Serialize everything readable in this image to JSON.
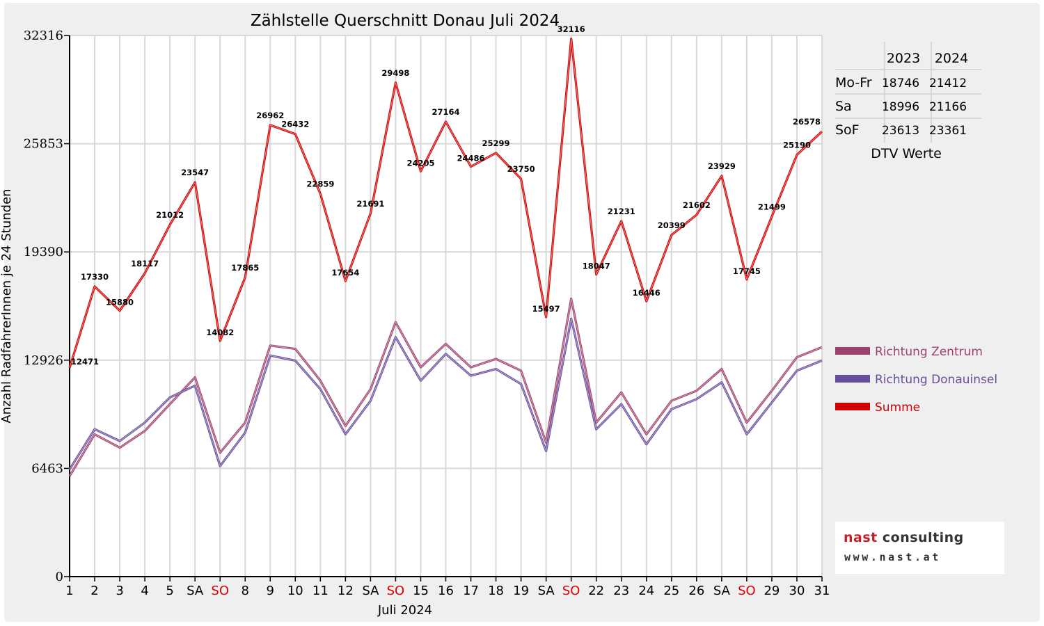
{
  "chart_data": {
    "type": "line",
    "title": "Zählstelle Querschnitt Donau Juli 2024",
    "xlabel": "Juli 2024",
    "ylabel": "Anzahl RadfahrerInnen je 24 Stunden",
    "ylim": [
      0,
      32316
    ],
    "yticks": [
      "0",
      "6463",
      "12926",
      "19390",
      "25853",
      "32316"
    ],
    "x_tick_labels": [
      "1",
      "2",
      "3",
      "4",
      "5",
      "SA",
      "SO",
      "8",
      "9",
      "10",
      "11",
      "12",
      "SA",
      "SO",
      "15",
      "16",
      "17",
      "18",
      "19",
      "SA",
      "SO",
      "22",
      "23",
      "24",
      "25",
      "26",
      "SA",
      "SO",
      "29",
      "30",
      "31"
    ],
    "sunday_color": "#e00000",
    "grid": true,
    "legend_position": "right",
    "series": [
      {
        "name": "Richtung Zentrum",
        "color": "#a0406e",
        "values": [
          6000,
          8500,
          7700,
          8700,
          10300,
          11900,
          7400,
          9200,
          13800,
          13600,
          11700,
          9000,
          11200,
          15200,
          12500,
          13900,
          12500,
          13000,
          12300,
          8000,
          16600,
          9200,
          11000,
          8500,
          10500,
          11100,
          12400,
          9200,
          11100,
          13100,
          13700
        ]
      },
      {
        "name": "Richtung Donauinsel",
        "color": "#6a4c9c",
        "values": [
          6400,
          8800,
          8100,
          9200,
          10700,
          11400,
          6600,
          8600,
          13200,
          12900,
          11200,
          8500,
          10500,
          14300,
          11700,
          13300,
          12000,
          12400,
          11500,
          7500,
          15400,
          8800,
          10300,
          7900,
          10000,
          10600,
          11600,
          8500,
          10400,
          12300,
          12900
        ]
      },
      {
        "name": "Summe",
        "color": "#d00000",
        "values": [
          12471,
          17330,
          15880,
          18117,
          21012,
          23547,
          14082,
          17865,
          26962,
          26432,
          22859,
          17654,
          21691,
          29498,
          24205,
          27164,
          24486,
          25299,
          23750,
          15497,
          32116,
          18047,
          21231,
          16446,
          20399,
          21602,
          23929,
          17745,
          21499,
          25190,
          26578
        ],
        "data_labels": [
          "12471",
          "17330",
          "15880",
          "18117",
          "21012",
          "23547",
          "14082",
          "17865",
          "26962",
          "26432",
          "22859",
          "17654",
          "21691",
          "29498",
          "24205",
          "27164",
          "24486",
          "25299",
          "23750",
          "15497",
          "32116",
          "18047",
          "21231",
          "16446",
          "20399",
          "21602",
          "23929",
          "17745",
          "21499",
          "25190",
          "26578"
        ]
      }
    ]
  },
  "dtv_table": {
    "headers": [
      "",
      "2023",
      "2024"
    ],
    "rows": [
      {
        "label": "Mo-Fr",
        "v2023": "18746",
        "v2024": "21412"
      },
      {
        "label": "Sa",
        "v2023": "18996",
        "v2024": "21166"
      },
      {
        "label": "SoF",
        "v2023": "23613",
        "v2024": "23361"
      }
    ],
    "caption": "DTV Werte"
  },
  "logo": {
    "name_part1": "nast",
    "name_part2": "consulting",
    "url": "www.nast.at"
  }
}
